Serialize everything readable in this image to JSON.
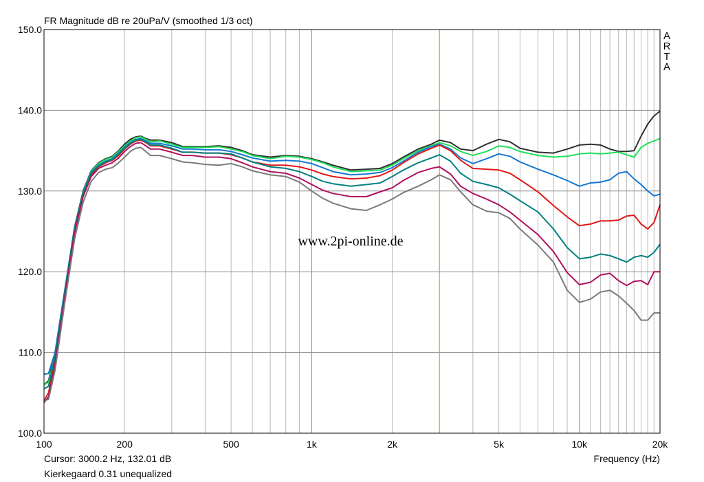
{
  "chart_data": {
    "type": "line",
    "title": "FR Magnitude dB re 20uPa/V (smoothed 1/3 oct)",
    "xlabel": "Frequency (Hz)",
    "ylabel": "",
    "xscale": "log",
    "xlim": [
      100,
      20000
    ],
    "ylim": [
      100,
      150
    ],
    "grid": true,
    "x_tick_labels": [
      {
        "value": 100,
        "label": "100"
      },
      {
        "value": 200,
        "label": "200"
      },
      {
        "value": 500,
        "label": "500"
      },
      {
        "value": 1000,
        "label": "1k"
      },
      {
        "value": 2000,
        "label": "2k"
      },
      {
        "value": 5000,
        "label": "5k"
      },
      {
        "value": 10000,
        "label": "10k"
      },
      {
        "value": 20000,
        "label": "20k"
      }
    ],
    "y_tick_labels": [
      {
        "value": 100,
        "label": "100.0"
      },
      {
        "value": 110,
        "label": "110.0"
      },
      {
        "value": 120,
        "label": "120.0"
      },
      {
        "value": 130,
        "label": "130.0"
      },
      {
        "value": 140,
        "label": "140.0"
      },
      {
        "value": 150,
        "label": "150.0"
      }
    ],
    "cursor": {
      "x": 3000.2,
      "color": "#c8a800"
    },
    "annotations": {
      "watermark": "www.2pi-online.de",
      "side_label": "ARTA",
      "cursor_readout": "Cursor: 3000.2 Hz, 132.01 dB",
      "caption": "Kierkegaard 0.31 unequalized"
    },
    "series": [
      {
        "color": "#303030",
        "x": [
          100,
          104,
          110,
          120,
          130,
          140,
          150,
          160,
          170,
          180,
          190,
          200,
          210,
          220,
          230,
          240,
          250,
          270,
          300,
          330,
          360,
          400,
          450,
          500,
          550,
          600,
          700,
          800,
          900,
          1000,
          1100,
          1200,
          1400,
          1600,
          1800,
          2000,
          2200,
          2500,
          2800,
          3000,
          3300,
          3600,
          4000,
          4500,
          5000,
          5500,
          6000,
          7000,
          8000,
          9000,
          10000,
          11000,
          12000,
          13000,
          14000,
          15000,
          16000,
          17000,
          18000,
          19000,
          20000
        ],
        "y": [
          106.0,
          106.5,
          110.0,
          118.0,
          125.5,
          130.0,
          132.5,
          133.5,
          134.0,
          134.3,
          135.0,
          135.8,
          136.4,
          136.7,
          136.8,
          136.5,
          136.3,
          136.3,
          136.0,
          135.5,
          135.5,
          135.5,
          135.6,
          135.4,
          135.0,
          134.5,
          134.2,
          134.4,
          134.3,
          134.0,
          133.6,
          133.2,
          132.6,
          132.7,
          132.8,
          133.4,
          134.2,
          135.2,
          135.8,
          136.3,
          136.0,
          135.2,
          135.0,
          135.8,
          136.4,
          136.1,
          135.3,
          134.8,
          134.7,
          135.2,
          135.7,
          135.8,
          135.7,
          135.2,
          134.9,
          134.9,
          135.0,
          136.8,
          138.3,
          139.3,
          139.9
        ]
      },
      {
        "color": "#1ee05a",
        "x": [
          100,
          104,
          110,
          120,
          130,
          140,
          150,
          160,
          170,
          180,
          190,
          200,
          210,
          220,
          230,
          240,
          250,
          270,
          300,
          330,
          360,
          400,
          450,
          500,
          550,
          600,
          700,
          800,
          900,
          1000,
          1100,
          1200,
          1400,
          1600,
          1800,
          2000,
          2200,
          2500,
          2800,
          3000,
          3300,
          3600,
          4000,
          4500,
          5000,
          5500,
          6000,
          7000,
          8000,
          9000,
          10000,
          11000,
          12000,
          13000,
          14000,
          15000,
          16000,
          17000,
          18000,
          19000,
          20000
        ],
        "y": [
          106.0,
          106.3,
          109.5,
          117.8,
          125.3,
          129.8,
          132.4,
          133.4,
          133.9,
          134.2,
          134.9,
          135.6,
          136.2,
          136.6,
          136.7,
          136.4,
          136.1,
          136.2,
          135.8,
          135.4,
          135.4,
          135.4,
          135.5,
          135.2,
          134.9,
          134.4,
          134.0,
          134.3,
          134.2,
          133.9,
          133.5,
          133.0,
          132.4,
          132.5,
          132.6,
          133.2,
          134.0,
          135.0,
          135.6,
          136.0,
          135.6,
          134.9,
          134.4,
          134.9,
          135.6,
          135.4,
          134.9,
          134.4,
          134.2,
          134.3,
          134.6,
          134.7,
          134.6,
          134.7,
          134.8,
          134.5,
          134.2,
          135.4,
          135.9,
          136.2,
          136.5
        ]
      },
      {
        "color": "#1478d2",
        "x": [
          100,
          104,
          110,
          120,
          130,
          140,
          150,
          160,
          170,
          180,
          190,
          200,
          210,
          220,
          230,
          240,
          250,
          270,
          300,
          330,
          360,
          400,
          450,
          500,
          550,
          600,
          700,
          800,
          900,
          1000,
          1100,
          1200,
          1400,
          1600,
          1800,
          2000,
          2200,
          2500,
          2800,
          3000,
          3300,
          3600,
          4000,
          4500,
          5000,
          5500,
          6000,
          7000,
          8000,
          9000,
          10000,
          11000,
          12000,
          13000,
          14000,
          15000,
          16000,
          17000,
          18000,
          19000,
          20000
        ],
        "y": [
          107.3,
          107.4,
          110.0,
          118.0,
          125.3,
          129.7,
          132.3,
          133.2,
          133.7,
          134.0,
          134.7,
          135.4,
          136.0,
          136.4,
          136.5,
          136.2,
          135.9,
          135.9,
          135.6,
          135.2,
          135.2,
          135.1,
          135.1,
          134.9,
          134.5,
          134.1,
          133.7,
          133.8,
          133.7,
          133.4,
          132.9,
          132.4,
          132.0,
          132.1,
          132.3,
          132.9,
          133.7,
          134.8,
          135.5,
          135.8,
          135.2,
          134.1,
          133.4,
          134.0,
          134.6,
          134.3,
          133.6,
          132.7,
          132.0,
          131.3,
          130.6,
          131.0,
          131.1,
          131.4,
          132.2,
          132.4,
          131.5,
          130.8,
          130.0,
          129.4,
          129.6
        ]
      },
      {
        "color": "#e01818",
        "x": [
          100,
          104,
          110,
          120,
          130,
          140,
          150,
          160,
          170,
          180,
          190,
          200,
          210,
          220,
          230,
          240,
          250,
          270,
          300,
          330,
          360,
          400,
          450,
          500,
          550,
          600,
          700,
          800,
          900,
          1000,
          1100,
          1200,
          1400,
          1600,
          1800,
          2000,
          2200,
          2500,
          2800,
          3000,
          3300,
          3600,
          4000,
          4500,
          5000,
          5500,
          6000,
          7000,
          8000,
          9000,
          10000,
          11000,
          12000,
          13000,
          14000,
          15000,
          16000,
          17000,
          18000,
          19000,
          20000
        ],
        "y": [
          104.0,
          105.0,
          109.0,
          117.5,
          125.0,
          129.5,
          132.0,
          133.0,
          133.5,
          133.8,
          134.4,
          135.2,
          135.8,
          136.2,
          136.3,
          136.0,
          135.6,
          135.6,
          135.2,
          134.8,
          134.8,
          134.7,
          134.7,
          134.5,
          134.1,
          133.6,
          133.2,
          133.2,
          133.0,
          132.6,
          132.1,
          131.8,
          131.5,
          131.6,
          131.9,
          132.6,
          133.5,
          134.6,
          135.3,
          135.7,
          135.0,
          133.8,
          132.8,
          132.7,
          132.6,
          132.2,
          131.4,
          129.9,
          128.2,
          126.8,
          125.7,
          125.9,
          126.3,
          126.3,
          126.4,
          126.9,
          127.0,
          125.9,
          125.3,
          126.1,
          128.3
        ]
      },
      {
        "color": "#008080",
        "x": [
          100,
          104,
          110,
          120,
          130,
          140,
          150,
          160,
          170,
          180,
          190,
          200,
          210,
          220,
          230,
          240,
          250,
          270,
          300,
          330,
          360,
          400,
          450,
          500,
          550,
          600,
          700,
          800,
          900,
          1000,
          1100,
          1200,
          1400,
          1600,
          1800,
          2000,
          2200,
          2500,
          2800,
          3000,
          3300,
          3600,
          4000,
          4500,
          5000,
          5500,
          6000,
          7000,
          8000,
          9000,
          10000,
          11000,
          12000,
          13000,
          14000,
          15000,
          16000,
          17000,
          18000,
          19000,
          20000
        ],
        "y": [
          105.5,
          105.8,
          109.5,
          117.8,
          125.2,
          129.6,
          132.2,
          133.1,
          133.6,
          133.9,
          134.6,
          135.3,
          135.9,
          136.3,
          136.4,
          136.1,
          135.7,
          135.7,
          135.3,
          134.8,
          134.8,
          134.7,
          134.7,
          134.6,
          134.1,
          133.6,
          133.0,
          132.8,
          132.4,
          131.8,
          131.2,
          130.9,
          130.6,
          130.8,
          131.0,
          131.8,
          132.6,
          133.5,
          134.1,
          134.5,
          133.7,
          132.2,
          131.2,
          130.8,
          130.4,
          129.6,
          128.8,
          127.4,
          125.3,
          123.0,
          121.6,
          121.8,
          122.2,
          122.0,
          121.6,
          121.2,
          121.8,
          122.0,
          121.8,
          122.4,
          123.4
        ]
      },
      {
        "color": "#b0105e",
        "x": [
          100,
          104,
          110,
          120,
          130,
          140,
          150,
          160,
          170,
          180,
          190,
          200,
          210,
          220,
          230,
          240,
          250,
          270,
          300,
          330,
          360,
          400,
          450,
          500,
          550,
          600,
          700,
          800,
          900,
          1000,
          1100,
          1200,
          1400,
          1600,
          1800,
          2000,
          2200,
          2500,
          2800,
          3000,
          3300,
          3600,
          4000,
          4500,
          5000,
          5500,
          6000,
          7000,
          8000,
          9000,
          10000,
          11000,
          12000,
          13000,
          14000,
          15000,
          16000,
          17000,
          18000,
          19000,
          20000
        ],
        "y": [
          103.8,
          104.5,
          108.5,
          117.2,
          124.8,
          129.3,
          131.8,
          132.8,
          133.2,
          133.5,
          134.1,
          134.9,
          135.5,
          135.9,
          136.0,
          135.6,
          135.2,
          135.2,
          134.8,
          134.4,
          134.4,
          134.2,
          134.2,
          134.0,
          133.5,
          133.0,
          132.4,
          132.2,
          131.6,
          130.8,
          130.1,
          129.7,
          129.3,
          129.3,
          129.9,
          130.4,
          131.3,
          132.3,
          132.8,
          133.0,
          132.1,
          130.6,
          129.7,
          129.0,
          128.3,
          127.4,
          126.4,
          124.6,
          122.5,
          119.9,
          118.4,
          118.7,
          119.6,
          119.8,
          118.9,
          118.3,
          118.8,
          118.9,
          118.4,
          120.0,
          120.0
        ]
      },
      {
        "color": "#7a7a7a",
        "x": [
          100,
          104,
          110,
          120,
          130,
          140,
          150,
          160,
          170,
          180,
          190,
          200,
          210,
          220,
          230,
          240,
          250,
          270,
          300,
          330,
          360,
          400,
          450,
          500,
          550,
          600,
          700,
          800,
          900,
          1000,
          1100,
          1200,
          1400,
          1600,
          1800,
          2000,
          2200,
          2500,
          2800,
          3000,
          3300,
          3600,
          4000,
          4500,
          5000,
          5500,
          6000,
          7000,
          8000,
          9000,
          10000,
          11000,
          12000,
          13000,
          14000,
          15000,
          16000,
          17000,
          18000,
          19000,
          20000
        ],
        "y": [
          104.0,
          104.2,
          107.8,
          116.5,
          124.0,
          128.6,
          131.2,
          132.3,
          132.7,
          132.9,
          133.5,
          134.2,
          134.9,
          135.3,
          135.4,
          134.9,
          134.4,
          134.4,
          134.0,
          133.6,
          133.5,
          133.3,
          133.2,
          133.4,
          133.0,
          132.5,
          132.0,
          131.8,
          131.1,
          130.0,
          129.1,
          128.5,
          127.8,
          127.6,
          128.3,
          129.0,
          129.8,
          130.6,
          131.4,
          132.0,
          131.4,
          129.9,
          128.3,
          127.5,
          127.3,
          126.6,
          125.3,
          123.3,
          121.2,
          117.7,
          116.2,
          116.6,
          117.5,
          117.7,
          117.0,
          116.1,
          115.2,
          114.0,
          114.0,
          114.9,
          114.9
        ]
      }
    ]
  }
}
